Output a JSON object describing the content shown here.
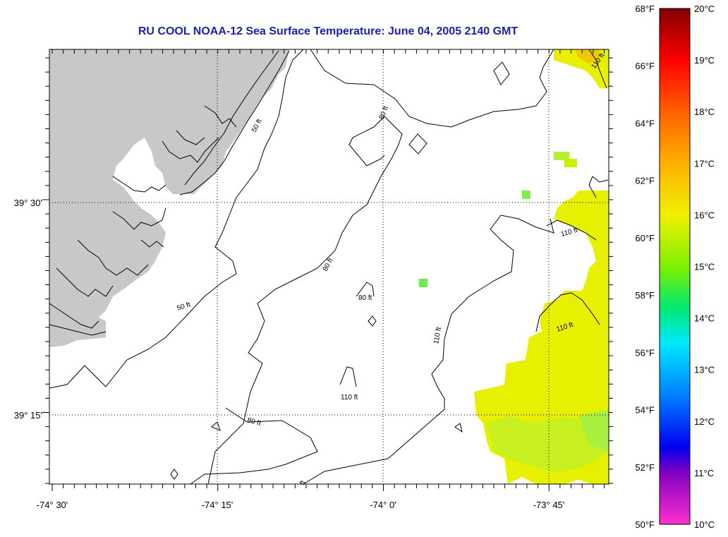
{
  "title": "RU COOL  NOAA-12  Sea Surface Temperature:  June 04, 2005 2140 GMT",
  "lon_ticks": [
    {
      "label": "-74° 30'",
      "lon": -74.5
    },
    {
      "label": "-74° 15'",
      "lon": -74.25
    },
    {
      "label": "-74° 0'",
      "lon": -74.0
    },
    {
      "label": "-73° 45'",
      "lon": -73.75
    }
  ],
  "lat_ticks": [
    {
      "label": "39° 30'",
      "lat": 39.5
    },
    {
      "label": "39° 15'",
      "lat": 39.25
    }
  ],
  "contours": [
    {
      "label": "50 ft"
    },
    {
      "label": "50 ft"
    },
    {
      "label": "80 ft"
    },
    {
      "label": "80 ft"
    },
    {
      "label": "80 ft"
    },
    {
      "label": "80 ft"
    },
    {
      "label": "110 ft"
    },
    {
      "label": "110 ft"
    },
    {
      "label": "110 ft"
    },
    {
      "label": "110 ft"
    },
    {
      "label": "110 ft"
    },
    {
      "label": "ft"
    }
  ],
  "colorbar": {
    "fahrenheit": [
      "68°F",
      "66°F",
      "64°F",
      "62°F",
      "60°F",
      "58°F",
      "56°F",
      "54°F",
      "52°F",
      "50°F"
    ],
    "celsius": [
      "20°C",
      "19°C",
      "18°C",
      "17°C",
      "16°C",
      "15°C",
      "14°C",
      "13°C",
      "12°C",
      "11°C",
      "10°C"
    ],
    "range_c": [
      10,
      20
    ]
  },
  "colors": {
    "land": "#c8c8c8",
    "title": "#1a22b0",
    "sst_warm": "#f0f000",
    "sst_mid": "#c8f000",
    "sst_cool": "#a0f020"
  }
}
